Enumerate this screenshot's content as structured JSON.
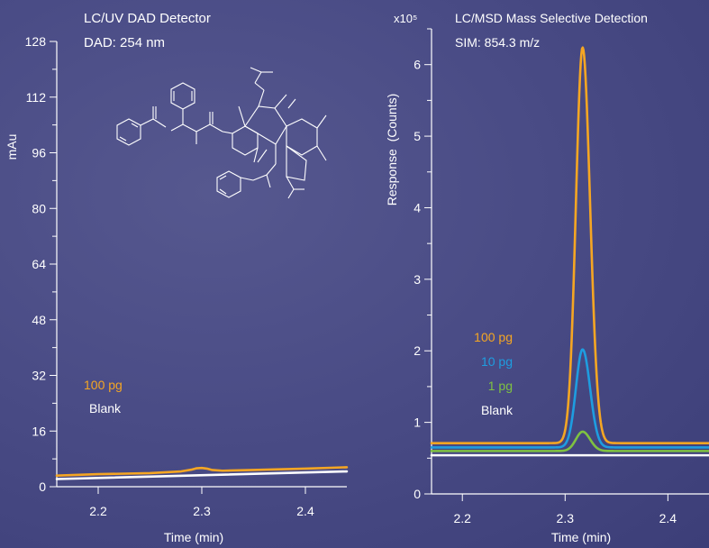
{
  "colors": {
    "background": "#4a4c86",
    "axis": "#ffffff",
    "series_100pg": "#f5a623",
    "series_10pg": "#1e9de0",
    "series_1pg": "#7fc241",
    "series_blank": "#ffffff"
  },
  "chart_data": [
    {
      "type": "line",
      "title": "LC/UV DAD Detector",
      "subtitle": "DAD: 254 nm",
      "xlabel": "Time (min)",
      "ylabel": "mAu",
      "xlim": [
        2.16,
        2.44
      ],
      "ylim": [
        0,
        128
      ],
      "x_ticks": [
        2.2,
        2.3,
        2.4
      ],
      "y_ticks": [
        0,
        16,
        32,
        48,
        64,
        80,
        96,
        112,
        128
      ],
      "y_minor_step": 8,
      "grid": false,
      "legend_position": "lower-left",
      "series": [
        {
          "name": "100 pg",
          "color": "#f5a623",
          "x": [
            2.16,
            2.2,
            2.25,
            2.28,
            2.29,
            2.295,
            2.3,
            2.305,
            2.31,
            2.32,
            2.35,
            2.4,
            2.44
          ],
          "y": [
            3.2,
            3.6,
            3.9,
            4.4,
            4.9,
            5.3,
            5.4,
            5.2,
            4.8,
            4.6,
            4.8,
            5.2,
            5.6
          ]
        },
        {
          "name": "Blank",
          "color": "#ffffff",
          "x": [
            2.16,
            2.44
          ],
          "y": [
            2.2,
            4.4
          ]
        }
      ]
    },
    {
      "type": "line",
      "title": "LC/MSD Mass Selective Detection",
      "subtitle": "SIM: 854.3 m/z",
      "y_scale_label": "x10⁵",
      "xlabel": "Time (min)",
      "ylabel": "Response  (Counts)",
      "xlim": [
        2.17,
        2.44
      ],
      "ylim": [
        0,
        6.5
      ],
      "x_ticks": [
        2.2,
        2.3,
        2.4
      ],
      "y_ticks": [
        0,
        1,
        2,
        3,
        4,
        5,
        6
      ],
      "y_minor_step": 0.5,
      "grid": false,
      "legend_position": "center-left",
      "series": [
        {
          "name": "100 pg",
          "color": "#f5a623",
          "baseline": 0.71,
          "peak_height": 5.53,
          "peak_center": 2.317,
          "peak_sigma": 0.0065
        },
        {
          "name": "10 pg",
          "color": "#1e9de0",
          "baseline": 0.65,
          "peak_height": 1.37,
          "peak_center": 2.317,
          "peak_sigma": 0.0065
        },
        {
          "name": "1 pg",
          "color": "#7fc241",
          "baseline": 0.6,
          "peak_height": 0.27,
          "peak_center": 2.317,
          "peak_sigma": 0.0065
        },
        {
          "name": "Blank",
          "color": "#ffffff",
          "baseline": 0.54,
          "peak_height": 0,
          "peak_center": 2.317,
          "peak_sigma": 0.0065
        }
      ]
    }
  ]
}
